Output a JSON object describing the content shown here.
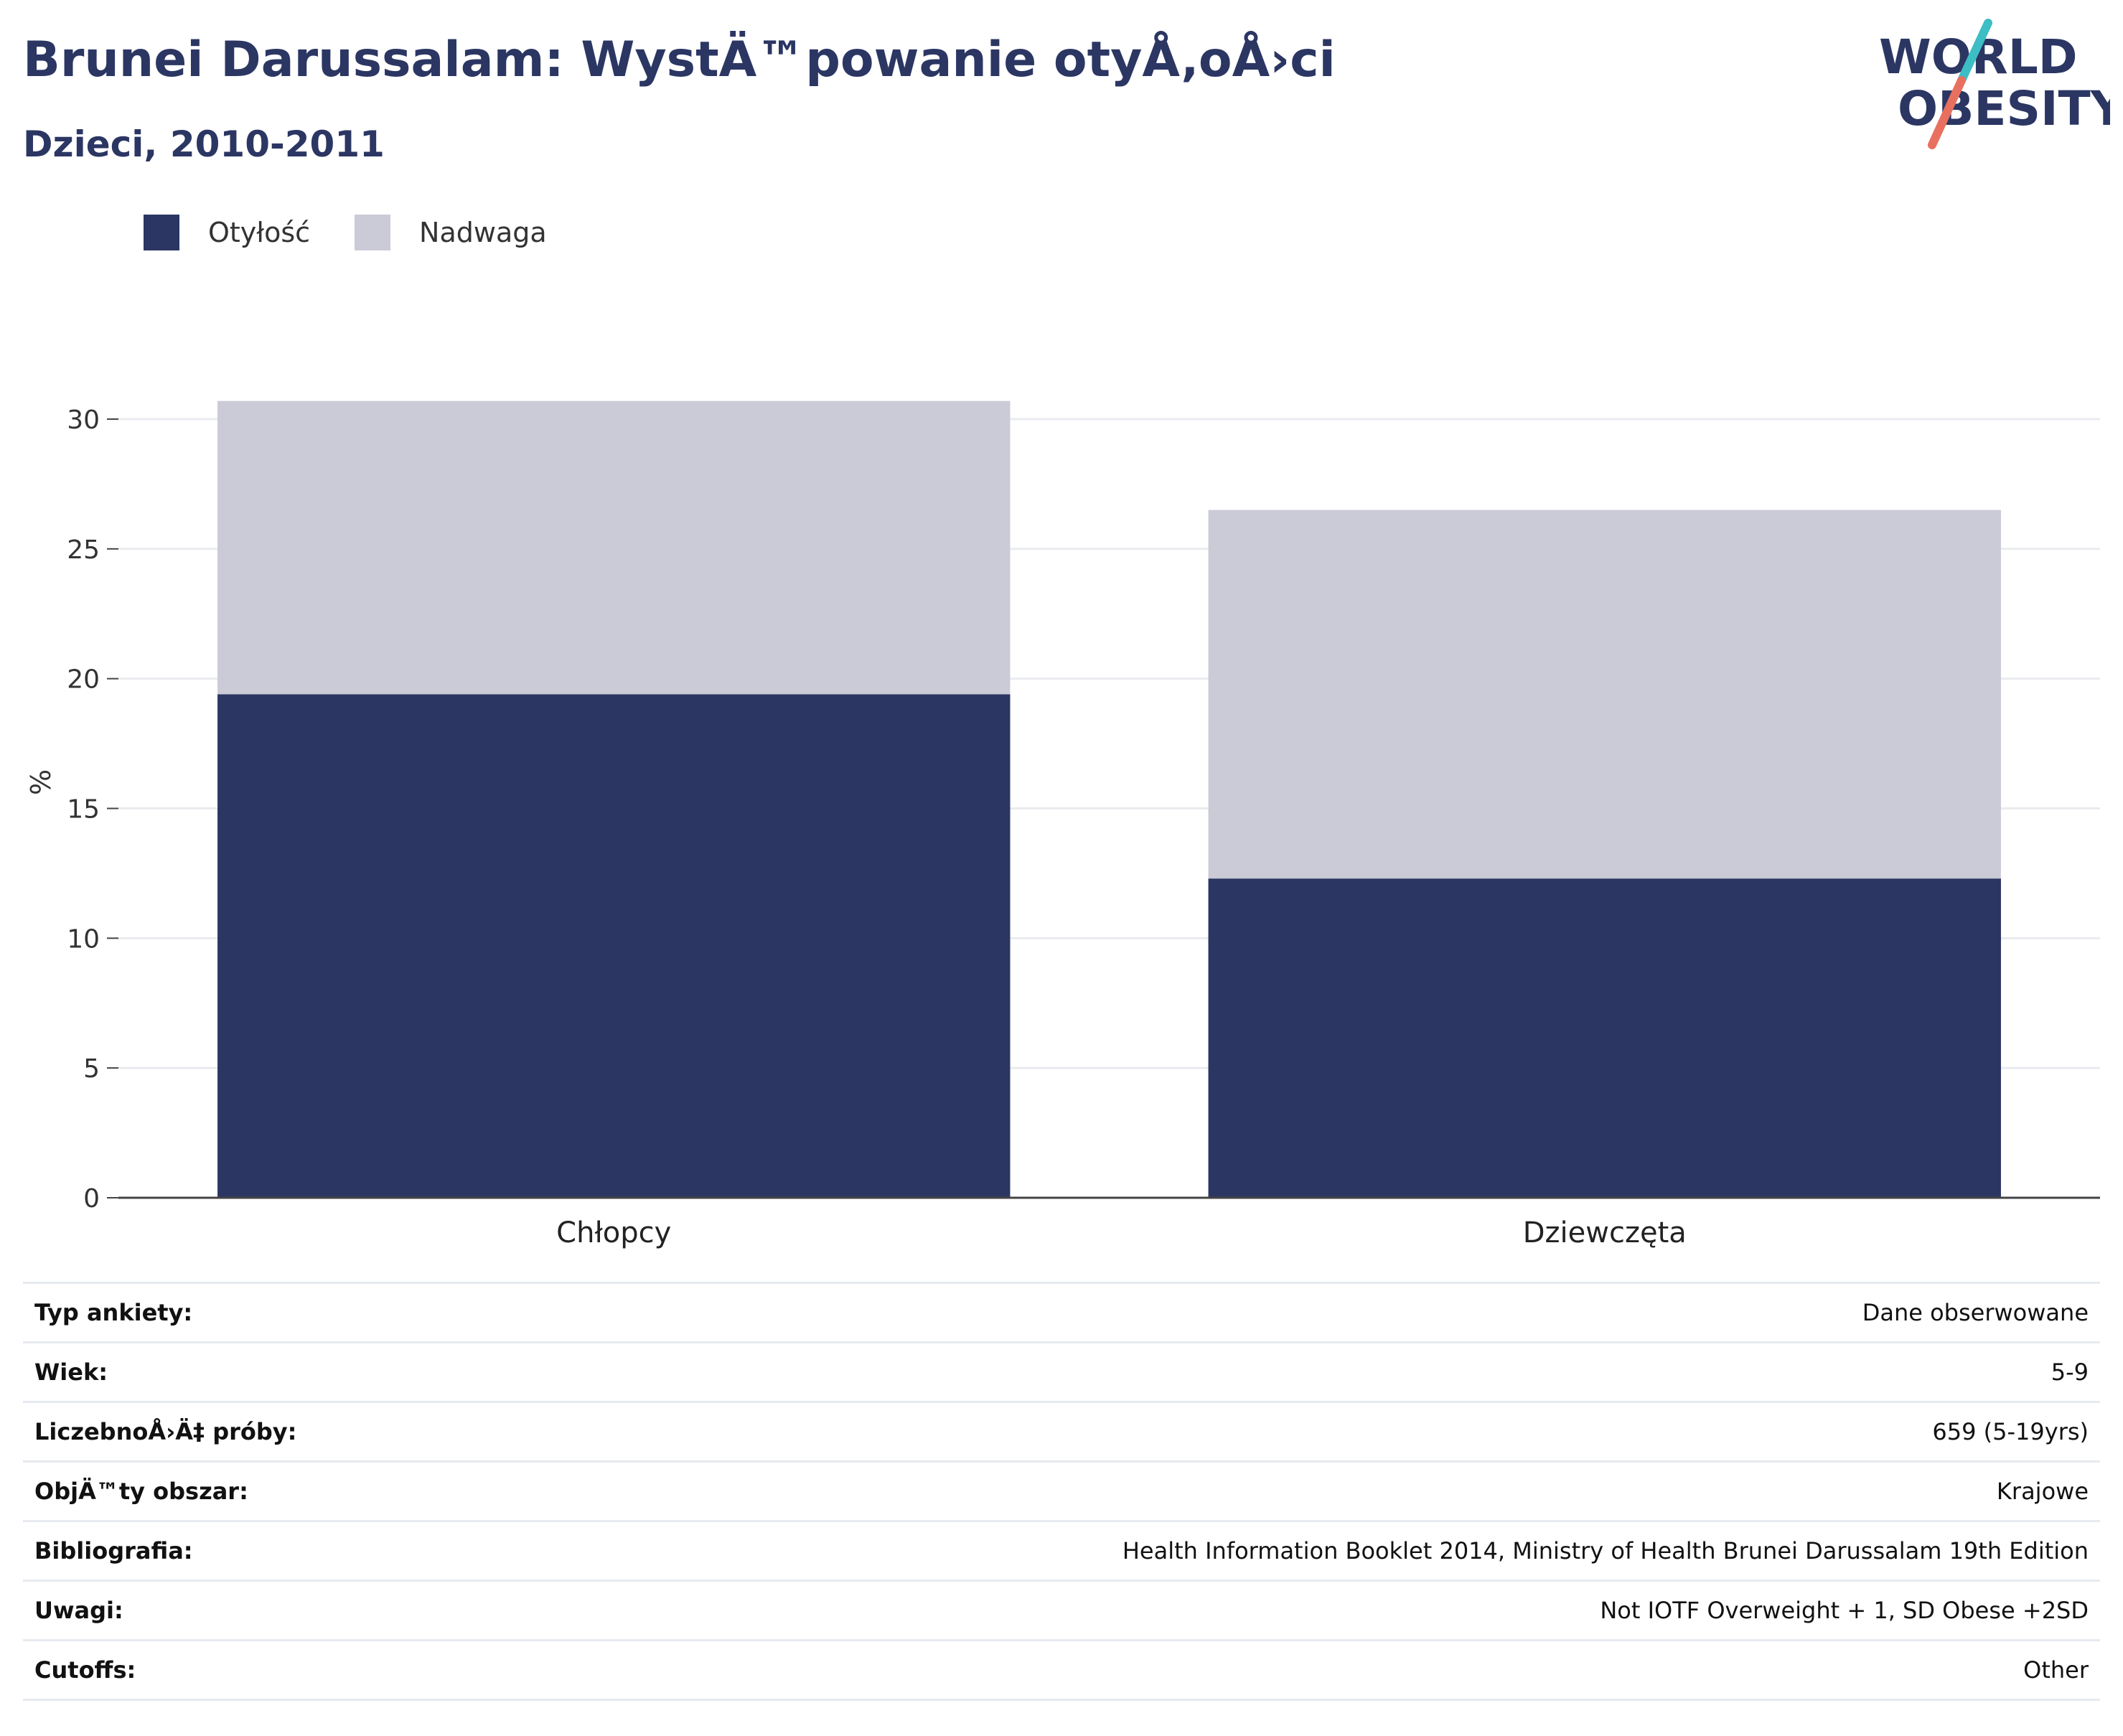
{
  "header": {
    "title": "Brunei Darussalam: WystÄ™powanie otyÅ‚oÅ›ci",
    "subtitle": "Dzieci, 2010-2011"
  },
  "logo": {
    "line1": "WORLD",
    "line2": "OBESITY",
    "accent_teal": "#3dbdc4",
    "accent_coral": "#e8705f",
    "text_color": "#2b3663"
  },
  "chart_data": {
    "type": "bar",
    "stacked": true,
    "categories": [
      "Chłopcy",
      "Dziewczęta"
    ],
    "series": [
      {
        "name": "Otyłość",
        "values": [
          19.4,
          12.3
        ],
        "color": "#2b3663"
      },
      {
        "name": "Nadwaga",
        "values": [
          11.3,
          14.2
        ],
        "color": "#cacbd7"
      }
    ],
    "ylabel": "%",
    "ylim": [
      0,
      30
    ],
    "yticks": [
      0,
      5,
      10,
      15,
      20,
      25,
      30
    ],
    "grid": true,
    "legend": "top-left"
  },
  "info_rows": [
    {
      "label": "Typ ankiety:",
      "value": "Dane obserwowane"
    },
    {
      "label": "Wiek:",
      "value": "5-9"
    },
    {
      "label": "LiczebnoÅ›Ä‡ próby:",
      "value": "659 (5-19yrs)"
    },
    {
      "label": "ObjÄ™ty obszar:",
      "value": "Krajowe"
    },
    {
      "label": "Bibliografia:",
      "value": "Health Information Booklet 2014, Ministry of Health Brunei Darussalam 19th Edition"
    },
    {
      "label": "Uwagi:",
      "value": "Not IOTF Overweight + 1, SD Obese +2SD"
    },
    {
      "label": "Cutoffs:",
      "value": "Other"
    }
  ]
}
